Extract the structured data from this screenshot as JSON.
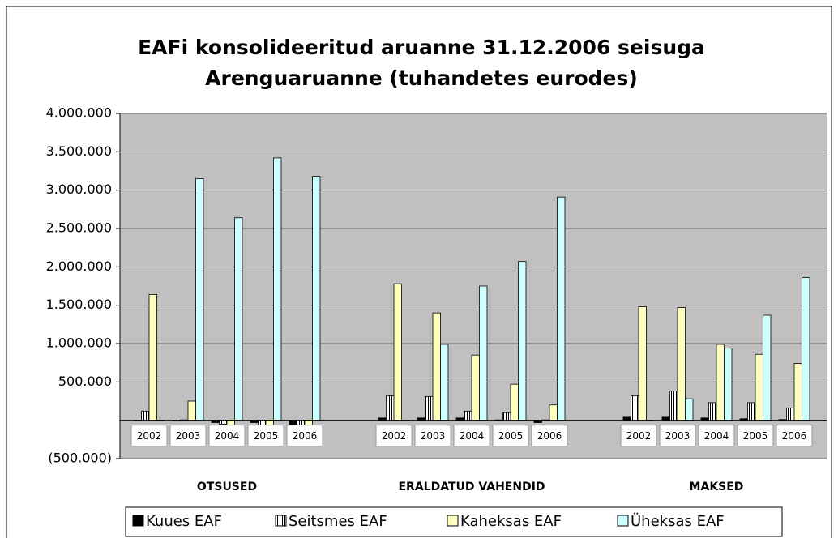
{
  "chart_data": {
    "type": "bar",
    "title": "EAFi konsolideeritud aruanne 31.12.2006 seisuga",
    "subtitle": "Arenguaruanne (tuhandetes eurodes)",
    "groups": [
      "OTSUSED",
      "ERALDATUD VAHENDID",
      "MAKSED"
    ],
    "categories": [
      "2002",
      "2003",
      "2004",
      "2005",
      "2006",
      "2002",
      "2003",
      "2004",
      "2005",
      "2006",
      "2002",
      "2003",
      "2004",
      "2005",
      "2006"
    ],
    "series": [
      {
        "name": "Kuues EAF",
        "color": "#000000",
        "values": [
          0,
          -10000,
          -30000,
          -30000,
          -70000,
          30000,
          30000,
          30000,
          5000,
          -30000,
          40000,
          40000,
          30000,
          20000,
          10000
        ]
      },
      {
        "name": "Seitsmes EAF",
        "color": "#ffffff",
        "pattern": "vertical-stripes",
        "values": [
          120000,
          5000,
          -50000,
          -80000,
          -130000,
          320000,
          310000,
          120000,
          100000,
          5000,
          320000,
          380000,
          230000,
          230000,
          160000
        ]
      },
      {
        "name": "Kaheksas EAF",
        "color": "#ffffc0",
        "values": [
          1640000,
          250000,
          -170000,
          -270000,
          -270000,
          1780000,
          1400000,
          850000,
          470000,
          200000,
          1480000,
          1470000,
          990000,
          860000,
          740000
        ]
      },
      {
        "name": "Üheksas EAF",
        "color": "#ccffff",
        "values": [
          0,
          3150000,
          2640000,
          3420000,
          3180000,
          0,
          990000,
          1750000,
          2070000,
          2910000,
          0,
          280000,
          940000,
          1370000,
          1860000
        ]
      }
    ],
    "ylim": [
      -500000,
      4000000
    ],
    "yticks": [
      {
        "value": -500000,
        "label": "(500.000)"
      },
      {
        "value": 500000,
        "label": "500.000"
      },
      {
        "value": 1000000,
        "label": "1.000.000"
      },
      {
        "value": 1500000,
        "label": "1.500.000"
      },
      {
        "value": 2000000,
        "label": "2.000.000"
      },
      {
        "value": 2500000,
        "label": "2.500.000"
      },
      {
        "value": 3000000,
        "label": "3.000.000"
      },
      {
        "value": 3500000,
        "label": "3.500.000"
      },
      {
        "value": 4000000,
        "label": "4.000.000"
      }
    ],
    "grid": true,
    "legend": "bottom"
  }
}
